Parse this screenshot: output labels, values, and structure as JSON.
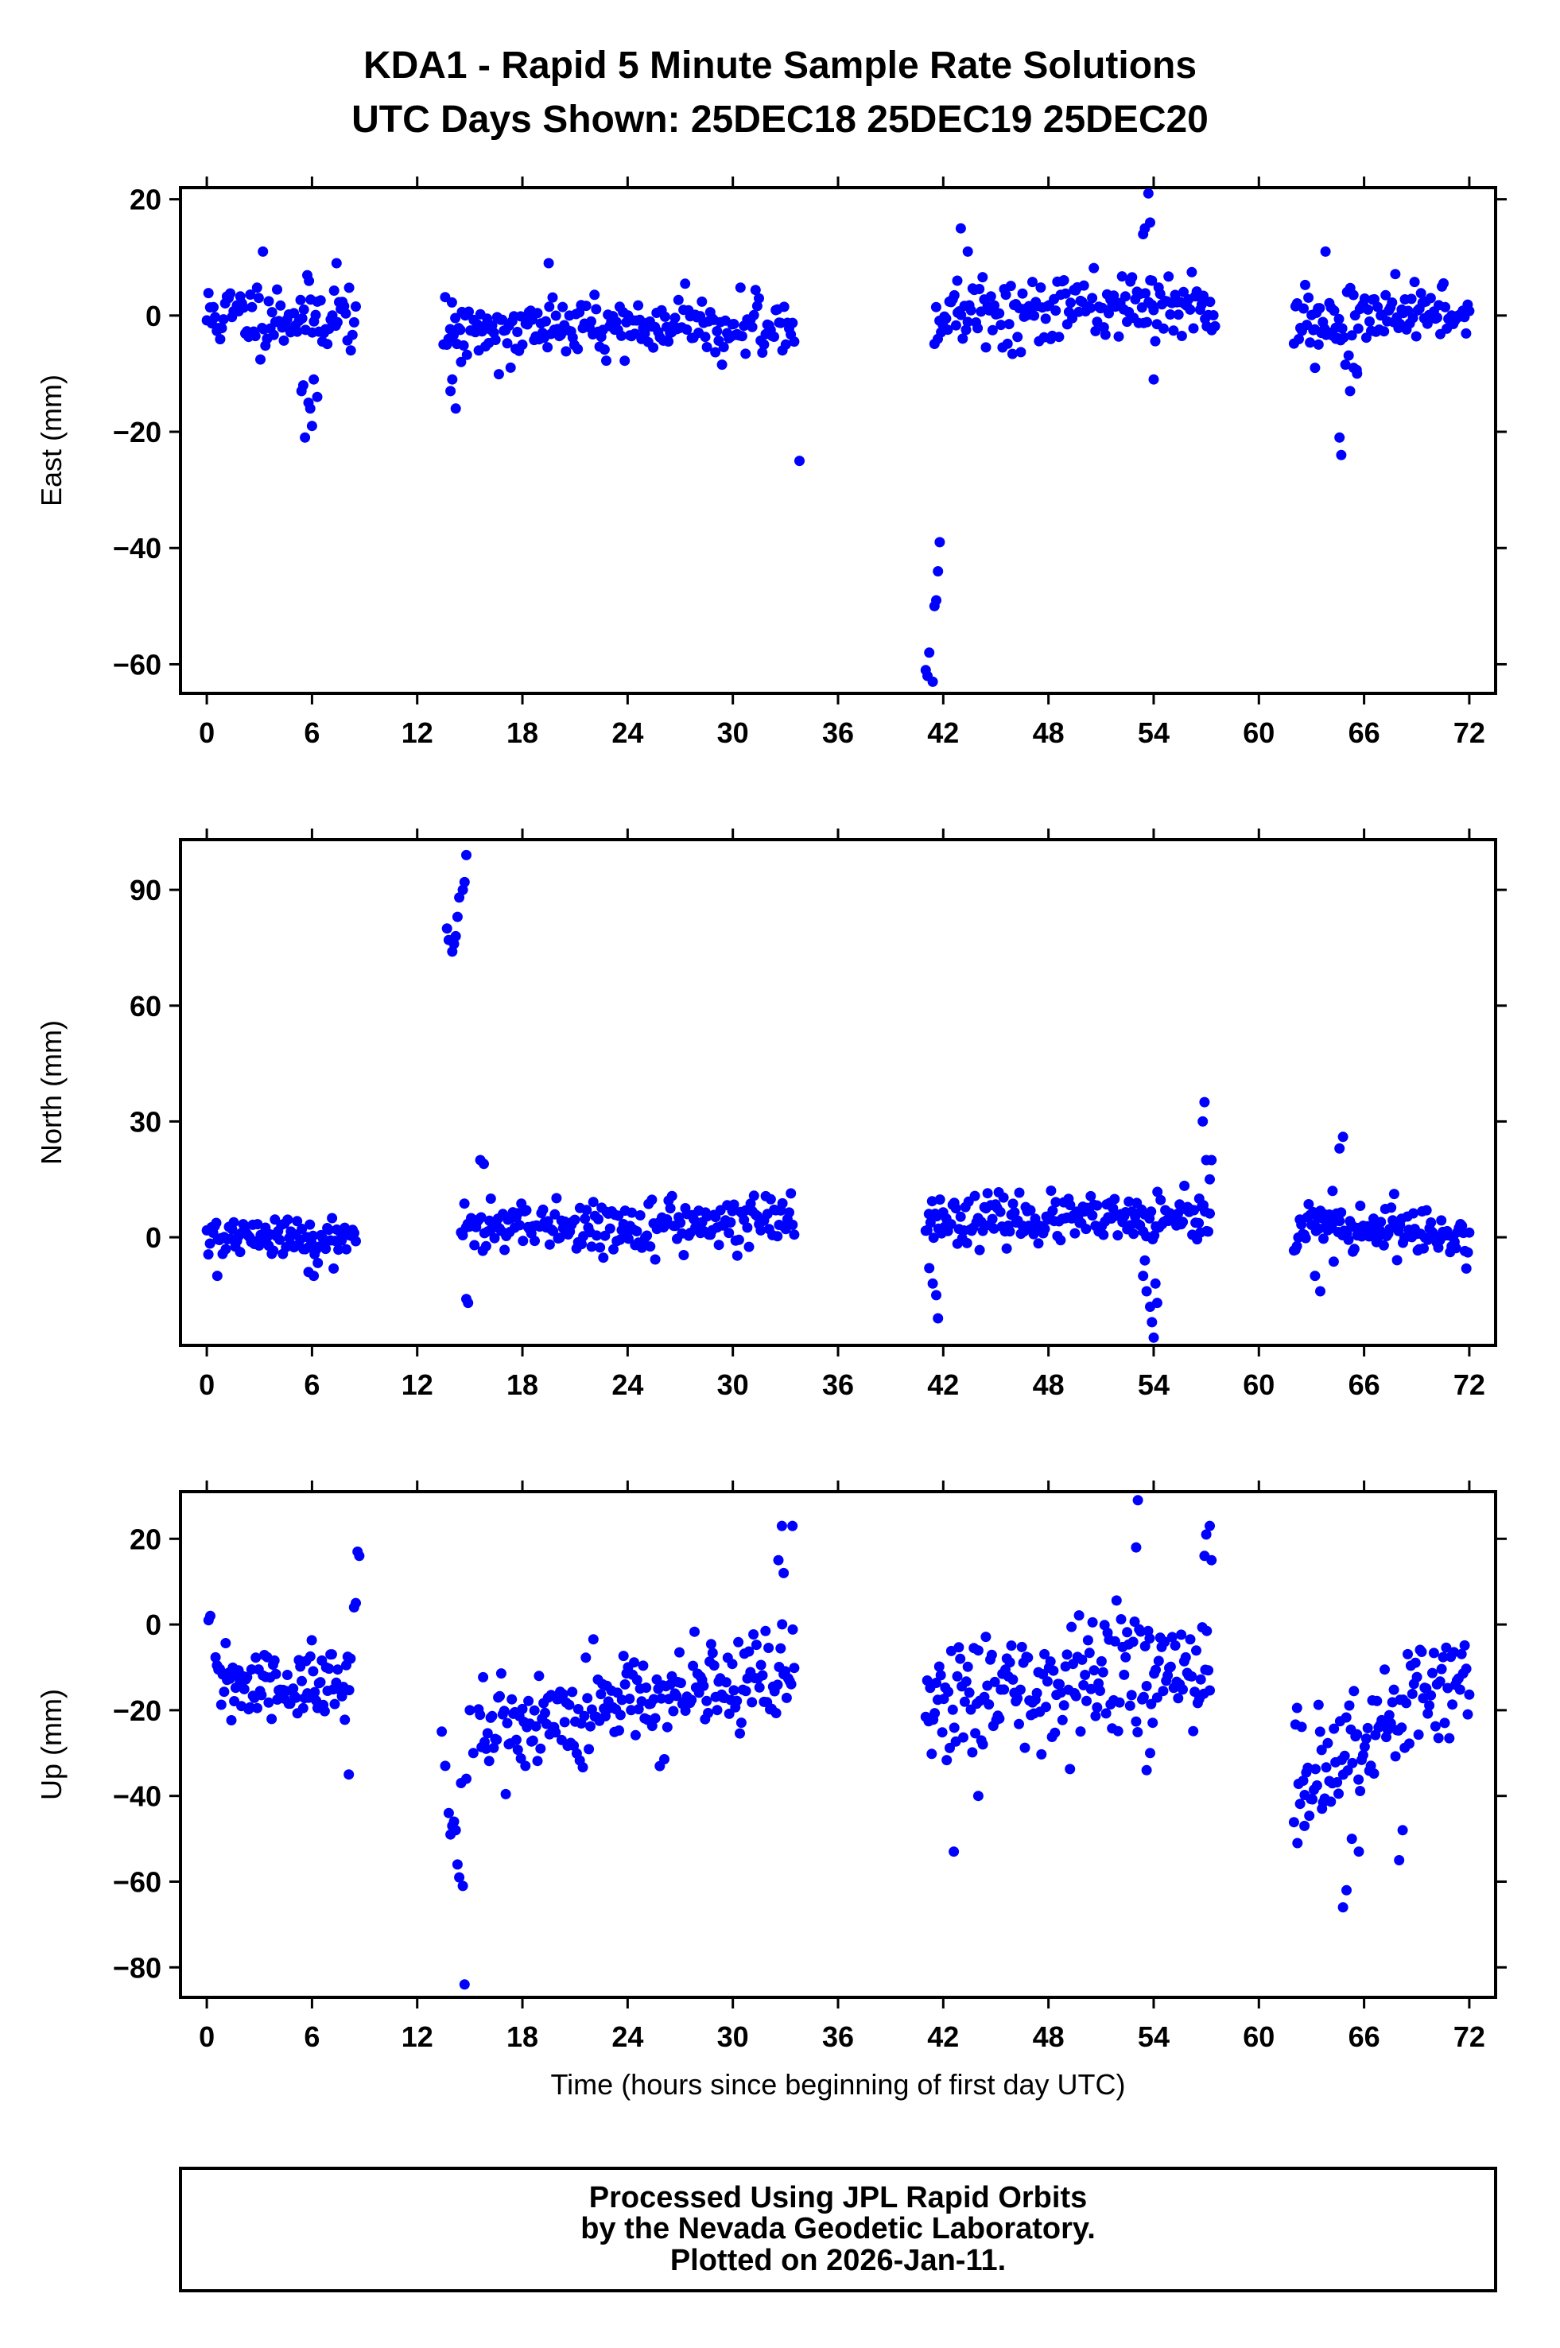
{
  "title_line1": "KDA1 - Rapid 5 Minute Sample Rate Solutions",
  "title_line2": "UTC Days Shown:  25DEC18 25DEC19 25DEC20",
  "footer": {
    "line1": "Processed Using JPL Rapid Orbits",
    "line2": "by the Nevada Geodetic Laboratory.",
    "line3": "Plotted on 2026-Jan-11."
  },
  "colors": {
    "points": "#0000ff",
    "frame": "#000000"
  },
  "chart_data": [
    {
      "type": "scatter",
      "ylabel": "East (mm)",
      "xlabel": "",
      "xlim": [
        -1.5,
        73.5
      ],
      "ylim": [
        -65,
        22
      ],
      "xticks": [
        0,
        6,
        12,
        18,
        24,
        30,
        36,
        42,
        48,
        54,
        60,
        66,
        72
      ],
      "yticks": [
        -60,
        -40,
        -20,
        0,
        20
      ],
      "grid": false,
      "segments": [
        {
          "x": [
            0,
            8.5
          ],
          "y": [
            0,
            0
          ],
          "noise": 4,
          "n": 90,
          "seed": 11
        },
        {
          "x": [
            13.5,
            33.5
          ],
          "y": [
            -2,
            -2
          ],
          "noise": 3.5,
          "n": 210,
          "seed": 12
        },
        {
          "x": [
            41.5,
            57.5
          ],
          "y": [
            0,
            2
          ],
          "noise": 4,
          "n": 170,
          "seed": 13
        },
        {
          "x": [
            62,
            72
          ],
          "y": [
            0,
            1
          ],
          "noise": 4,
          "n": 110,
          "seed": 14
        }
      ],
      "points": [
        [
          5.5,
          -12
        ],
        [
          5.8,
          -15
        ],
        [
          6.0,
          -19
        ],
        [
          5.6,
          -21
        ],
        [
          6.3,
          -14
        ],
        [
          5.9,
          -16
        ],
        [
          6.1,
          -11
        ],
        [
          5.4,
          -13
        ],
        [
          3.2,
          11
        ],
        [
          7.4,
          9
        ],
        [
          19.5,
          9
        ],
        [
          33.8,
          -25
        ],
        [
          41.0,
          -61
        ],
        [
          41.2,
          -58
        ],
        [
          41.4,
          -63
        ],
        [
          41.1,
          -62
        ],
        [
          41.6,
          -49
        ],
        [
          41.7,
          -44
        ],
        [
          41.8,
          -39
        ],
        [
          41.5,
          -50
        ],
        [
          43.0,
          15
        ],
        [
          43.4,
          11
        ],
        [
          42.8,
          6
        ],
        [
          53.5,
          15
        ],
        [
          53.8,
          16
        ],
        [
          53.7,
          21
        ],
        [
          53.4,
          14
        ],
        [
          54.0,
          -11
        ],
        [
          53.9,
          6
        ],
        [
          63.8,
          11
        ],
        [
          64.6,
          -21
        ],
        [
          64.7,
          -24
        ],
        [
          65.2,
          -13
        ],
        [
          65.6,
          -10
        ],
        [
          65.4,
          -9
        ],
        [
          64.4,
          -4
        ],
        [
          63.2,
          -9
        ],
        [
          63.4,
          -5
        ],
        [
          13.9,
          -13
        ],
        [
          14.2,
          -16
        ],
        [
          14.0,
          -11
        ],
        [
          14.5,
          -8
        ]
      ]
    },
    {
      "type": "scatter",
      "ylabel": "North (mm)",
      "xlabel": "",
      "xlim": [
        -1.5,
        73.5
      ],
      "ylim": [
        -28,
        103
      ],
      "xticks": [
        0,
        6,
        12,
        18,
        24,
        30,
        36,
        42,
        48,
        54,
        60,
        66,
        72
      ],
      "yticks": [
        0,
        30,
        60,
        90
      ],
      "grid": false,
      "segments": [
        {
          "x": [
            0,
            8.5
          ],
          "y": [
            0,
            0
          ],
          "noise": 3.5,
          "n": 95,
          "seed": 21
        },
        {
          "x": [
            14.5,
            33.5
          ],
          "y": [
            2,
            4
          ],
          "noise": 4,
          "n": 200,
          "seed": 22
        },
        {
          "x": [
            41.0,
            57.2
          ],
          "y": [
            5,
            4
          ],
          "noise": 4,
          "n": 180,
          "seed": 23
        },
        {
          "x": [
            62,
            72
          ],
          "y": [
            2,
            0
          ],
          "noise": 4.5,
          "n": 120,
          "seed": 24
        }
      ],
      "points": [
        [
          13.7,
          80
        ],
        [
          13.8,
          77
        ],
        [
          14.0,
          74
        ],
        [
          14.2,
          78
        ],
        [
          14.3,
          83
        ],
        [
          14.4,
          88
        ],
        [
          14.6,
          90
        ],
        [
          14.7,
          92
        ],
        [
          14.8,
          99
        ],
        [
          14.1,
          76
        ],
        [
          14.8,
          -16
        ],
        [
          14.9,
          -17
        ],
        [
          15.6,
          20
        ],
        [
          15.8,
          19
        ],
        [
          16.2,
          10
        ],
        [
          41.2,
          -8
        ],
        [
          41.4,
          -12
        ],
        [
          41.6,
          -15
        ],
        [
          41.7,
          -21
        ],
        [
          53.4,
          -10
        ],
        [
          53.6,
          -14
        ],
        [
          53.8,
          -18
        ],
        [
          53.9,
          -22
        ],
        [
          54.0,
          -26
        ],
        [
          54.2,
          -17
        ],
        [
          53.5,
          -6
        ],
        [
          54.1,
          -12
        ],
        [
          56.8,
          30
        ],
        [
          56.9,
          35
        ],
        [
          57.0,
          20
        ],
        [
          57.2,
          15
        ],
        [
          56.6,
          10
        ],
        [
          57.3,
          20
        ],
        [
          63.2,
          -10
        ],
        [
          63.5,
          -14
        ],
        [
          64.6,
          23
        ],
        [
          64.8,
          26
        ],
        [
          64.2,
          12
        ],
        [
          5.8,
          -9
        ],
        [
          6.1,
          -10
        ],
        [
          0.6,
          -10
        ]
      ]
    },
    {
      "type": "scatter",
      "ylabel": "Up (mm)",
      "xlabel": "Time (hours since beginning of first day UTC)",
      "xlim": [
        -1.5,
        73.5
      ],
      "ylim": [
        -87,
        31
      ],
      "xticks": [
        0,
        6,
        12,
        18,
        24,
        30,
        36,
        42,
        48,
        54,
        60,
        66,
        72
      ],
      "yticks": [
        -80,
        -60,
        -40,
        -20,
        0,
        20
      ],
      "grid": false,
      "segments": [
        {
          "x": [
            0.5,
            8.2
          ],
          "y": [
            -14,
            -15
          ],
          "noise": 6,
          "n": 95,
          "seed": 31
        },
        {
          "x": [
            15.5,
            33.5
          ],
          "y": [
            -24,
            -12
          ],
          "noise": 8,
          "n": 210,
          "seed": 32
        },
        {
          "x": [
            41.0,
            57.2
          ],
          "y": [
            -20,
            -8
          ],
          "noise": 9,
          "n": 190,
          "seed": 33
        },
        {
          "x": [
            62,
            72
          ],
          "y": [
            -38,
            -10
          ],
          "noise": 10,
          "n": 115,
          "seed": 34
        }
      ],
      "points": [
        [
          0.1,
          1
        ],
        [
          0.2,
          2
        ],
        [
          8.5,
          5
        ],
        [
          8.6,
          17
        ],
        [
          8.7,
          16
        ],
        [
          8.4,
          4
        ],
        [
          8.1,
          -35
        ],
        [
          13.4,
          -25
        ],
        [
          13.6,
          -33
        ],
        [
          13.8,
          -44
        ],
        [
          14.0,
          -47
        ],
        [
          14.2,
          -48
        ],
        [
          14.3,
          -56
        ],
        [
          14.4,
          -59
        ],
        [
          14.6,
          -61
        ],
        [
          14.7,
          -84
        ],
        [
          14.5,
          -37
        ],
        [
          13.9,
          -49
        ],
        [
          14.1,
          -46
        ],
        [
          14.8,
          -36
        ],
        [
          15.0,
          -20
        ],
        [
          15.2,
          -30
        ],
        [
          32.8,
          23
        ],
        [
          33.4,
          23
        ],
        [
          32.6,
          15
        ],
        [
          32.9,
          12
        ],
        [
          42.6,
          -53
        ],
        [
          44.0,
          -40
        ],
        [
          53.1,
          29
        ],
        [
          53.0,
          18
        ],
        [
          53.6,
          -34
        ],
        [
          53.8,
          -30
        ],
        [
          57.0,
          21
        ],
        [
          57.2,
          23
        ],
        [
          57.3,
          15
        ],
        [
          56.9,
          16
        ],
        [
          64.8,
          -66
        ],
        [
          65.0,
          -62
        ],
        [
          65.3,
          -50
        ],
        [
          65.7,
          -53
        ],
        [
          68.0,
          -55
        ],
        [
          68.2,
          -48
        ],
        [
          62.2,
          -51
        ],
        [
          62.6,
          -47
        ],
        [
          63.6,
          -43
        ]
      ]
    }
  ]
}
